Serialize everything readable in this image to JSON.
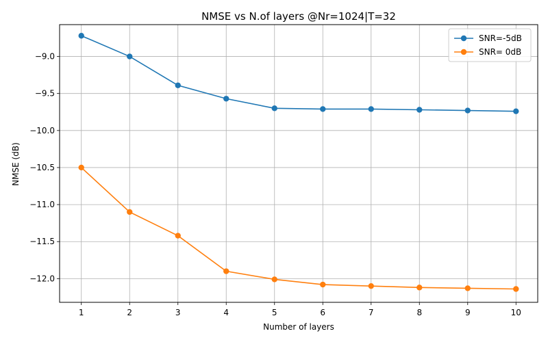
{
  "chart_data": {
    "type": "line",
    "title": "NMSE vs N.of layers @Nr=1024|T=32",
    "xlabel": "Number of layers",
    "ylabel": "NMSE (dB)",
    "x": [
      1,
      2,
      3,
      4,
      5,
      6,
      7,
      8,
      9,
      10
    ],
    "xticks": [
      "1",
      "2",
      "3",
      "4",
      "5",
      "6",
      "7",
      "8",
      "9",
      "10"
    ],
    "yticks": [
      "−9.0",
      "−9.5",
      "−10.0",
      "−10.5",
      "−11.0",
      "−11.5",
      "−12.0"
    ],
    "ytick_values": [
      -9.0,
      -9.5,
      -10.0,
      -10.5,
      -11.0,
      -11.5,
      -12.0
    ],
    "xlim": [
      0.55,
      10.45
    ],
    "ylim": [
      -12.32,
      -8.57
    ],
    "grid": true,
    "legend_position": "top-right",
    "series": [
      {
        "name": "SNR=-5dB",
        "color": "#1f77b4",
        "values": [
          -8.72,
          -9.0,
          -9.39,
          -9.57,
          -9.7,
          -9.71,
          -9.71,
          -9.72,
          -9.73,
          -9.74
        ]
      },
      {
        "name": "SNR= 0dB",
        "color": "#ff7f0e",
        "values": [
          -10.5,
          -11.1,
          -11.42,
          -11.9,
          -12.01,
          -12.08,
          -12.1,
          -12.12,
          -12.13,
          -12.14
        ]
      }
    ]
  }
}
